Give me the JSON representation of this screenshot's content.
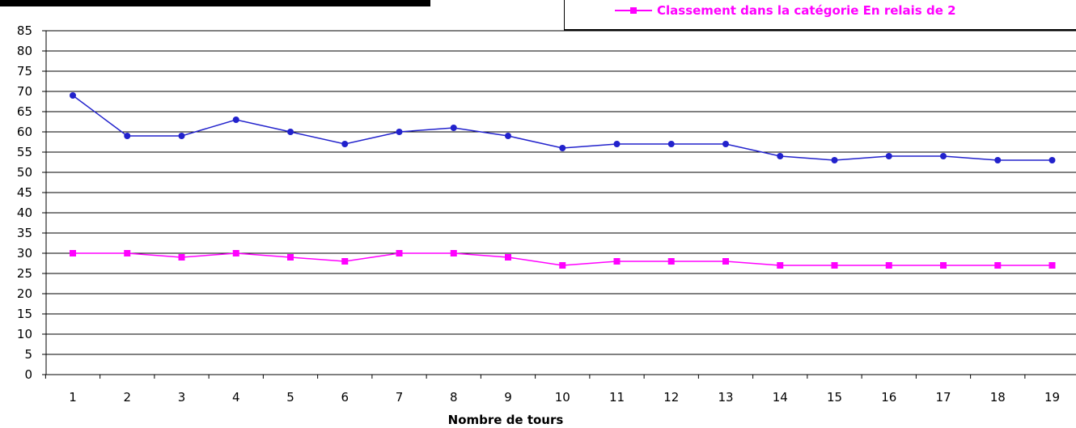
{
  "chart_data": {
    "type": "line",
    "categories": [
      "1",
      "2",
      "3",
      "4",
      "5",
      "6",
      "7",
      "8",
      "9",
      "10",
      "11",
      "12",
      "13",
      "14",
      "15",
      "16",
      "17",
      "18",
      "19"
    ],
    "series": [
      {
        "name": "",
        "color": "#2222cc",
        "marker": "circle",
        "values": [
          69,
          59,
          59,
          63,
          60,
          57,
          60,
          61,
          59,
          56,
          57,
          57,
          57,
          54,
          53,
          54,
          54,
          53,
          53
        ]
      },
      {
        "name": "Classement dans la catégorie En relais de 2",
        "color": "#ff00ff",
        "marker": "square",
        "values": [
          30,
          30,
          29,
          30,
          29,
          28,
          30,
          30,
          29,
          27,
          28,
          28,
          28,
          27,
          27,
          27,
          27,
          27,
          27
        ]
      }
    ],
    "ylim": [
      0,
      85
    ],
    "yticks": [
      0,
      5,
      10,
      15,
      20,
      25,
      30,
      35,
      40,
      45,
      50,
      55,
      60,
      65,
      70,
      75,
      80,
      85
    ],
    "xlabel": "Nombre de tours",
    "ylabel": "",
    "grid": true,
    "legend": "top-right"
  }
}
